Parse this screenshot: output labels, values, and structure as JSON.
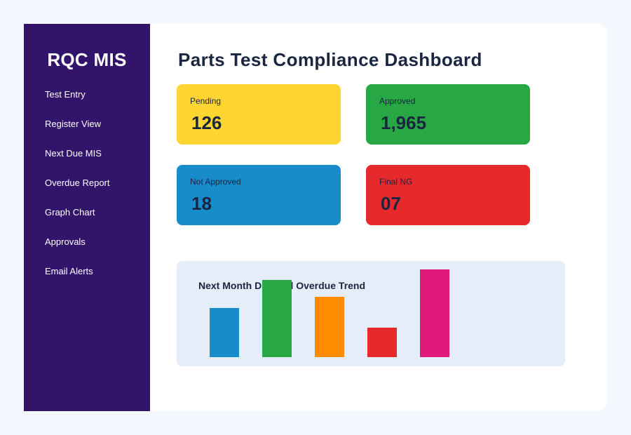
{
  "sidebar": {
    "brand": "RQC MIS",
    "items": [
      {
        "label": "Test Entry"
      },
      {
        "label": "Register View"
      },
      {
        "label": "Next Due MIS"
      },
      {
        "label": "Overdue Report"
      },
      {
        "label": "Graph Chart"
      },
      {
        "label": "Approvals"
      },
      {
        "label": "Email Alerts"
      }
    ]
  },
  "main": {
    "title": "Parts Test Compliance Dashboard",
    "cards": [
      {
        "label": "Pending",
        "value": "126",
        "color": "#ffd531"
      },
      {
        "label": "Approved",
        "value": "1,965",
        "color": "#27a844"
      },
      {
        "label": "Not Approved",
        "value": "18",
        "color": "#188bcb"
      },
      {
        "label": "Final NG",
        "value": "07",
        "color": "#e62a2c"
      }
    ]
  },
  "chart_data": {
    "type": "bar",
    "title": "Next Month Due and Overdue Trend",
    "values": [
      70,
      110,
      86,
      42,
      125
    ],
    "colors": [
      "#188bcb",
      "#27a844",
      "#ff8c00",
      "#e62a2c",
      "#e0197a"
    ],
    "ylim": [
      0,
      125
    ]
  }
}
